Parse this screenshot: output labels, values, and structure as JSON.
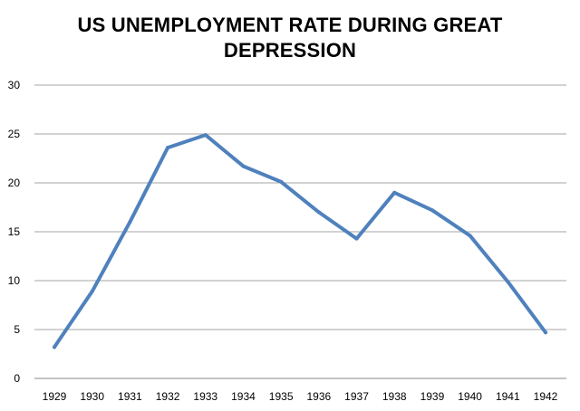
{
  "chart_data": {
    "type": "line",
    "title": "US UNEMPLOYMENT RATE DURING GREAT DEPRESSION",
    "xlabel": "",
    "ylabel": "",
    "categories": [
      "1929",
      "1930",
      "1931",
      "1932",
      "1933",
      "1934",
      "1935",
      "1936",
      "1937",
      "1938",
      "1939",
      "1940",
      "1941",
      "1942"
    ],
    "series": [
      {
        "values": [
          3.2,
          8.9,
          16.0,
          23.6,
          24.9,
          21.7,
          20.1,
          17.0,
          14.3,
          19.0,
          17.2,
          14.6,
          9.9,
          4.7
        ],
        "color": "#4f81bd"
      }
    ],
    "ylim": [
      0,
      30
    ],
    "yticks": [
      0,
      5,
      10,
      15,
      20,
      25,
      30
    ],
    "grid": true,
    "legend": "none"
  }
}
